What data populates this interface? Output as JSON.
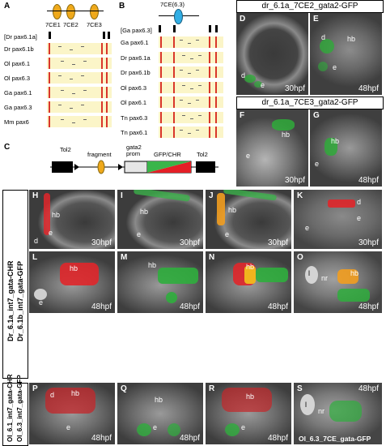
{
  "panelA": {
    "letter": "A",
    "elements": [
      "7CE1",
      "7CE2",
      "7CE3"
    ],
    "top_label": "[Dr pax6.1a]",
    "rows": [
      "Dr pax6.1b",
      "Ol pax6.1",
      "Ol pax6.3",
      "Ga pax6.1",
      "Ga pax6.3",
      "Mm pax6"
    ]
  },
  "panelB": {
    "letter": "B",
    "element": "7CE(6.3)",
    "top_label": "[Ga pax6.3]",
    "rows": [
      "Ga pax6.1",
      "Dr pax6.1a",
      "Dr pax6.1b",
      "Ol pax6.3",
      "Ol pax6.1",
      "Tn pax6.3",
      "Tn pax6.1"
    ]
  },
  "panelC": {
    "letter": "C",
    "labels": {
      "tol2_left": "Tol2",
      "fragment": "fragment",
      "prom": "gata2\nprom",
      "gfp": "GFP/CHR",
      "tol2_right": "Tol2"
    }
  },
  "headers": {
    "top_right_1": "dr_6.1a_7CE2_gata2-GFP",
    "top_right_2": "dr_6.1a_7CE3_gata2-GFP"
  },
  "side_labels": {
    "group1_line1": "Dr_6.1a_int7_gata-CHR",
    "group1_line2": "Dr_6.1b_int7_gata-GFP",
    "group2_line1": "Ol_6.1_int7_gata-CHR",
    "group2_line2": "Ol_6.3_int7_gata-GFP"
  },
  "photos": {
    "D": {
      "letter": "D",
      "time": "30hpf",
      "ann": [
        "d",
        "e"
      ]
    },
    "E": {
      "letter": "E",
      "time": "48hpf",
      "ann": [
        "d",
        "hb",
        "e"
      ]
    },
    "F": {
      "letter": "F",
      "time": "30hpf",
      "ann": [
        "hb",
        "e"
      ]
    },
    "G": {
      "letter": "G",
      "time": "48hpf",
      "ann": [
        "hb",
        "e"
      ]
    },
    "H": {
      "letter": "H",
      "time": "30hpf",
      "ann": [
        "hb",
        "e",
        "d"
      ]
    },
    "I": {
      "letter": "I",
      "time": "30hpf",
      "ann": [
        "hb",
        "e"
      ]
    },
    "J": {
      "letter": "J",
      "time": "30hpf",
      "ann": [
        "hb",
        "e"
      ]
    },
    "K": {
      "letter": "K",
      "time": "30hpf",
      "ann": [
        "d",
        "e",
        "e"
      ]
    },
    "L": {
      "letter": "L",
      "time": "48hpf",
      "ann": [
        "hb",
        "e"
      ]
    },
    "M": {
      "letter": "M",
      "time": "48hpf",
      "ann": [
        "hb"
      ]
    },
    "N": {
      "letter": "N",
      "time": "48hpf",
      "ann": [
        "hb"
      ]
    },
    "O": {
      "letter": "O",
      "time": "48hpf",
      "ann": [
        "hb",
        "l",
        "nr"
      ]
    },
    "P": {
      "letter": "P",
      "time": "48hpf",
      "ann": [
        "d",
        "hb",
        "e"
      ]
    },
    "Q": {
      "letter": "Q",
      "time": "48hpf",
      "ann": [
        "hb",
        "e"
      ]
    },
    "R": {
      "letter": "R",
      "time": "48hpf",
      "ann": [
        "hb",
        "e"
      ]
    },
    "S": {
      "letter": "S",
      "time": "48hpf",
      "ann": [
        "l",
        "nr"
      ],
      "caption": "Ol_6.3_7CE_gata-GFP"
    }
  }
}
